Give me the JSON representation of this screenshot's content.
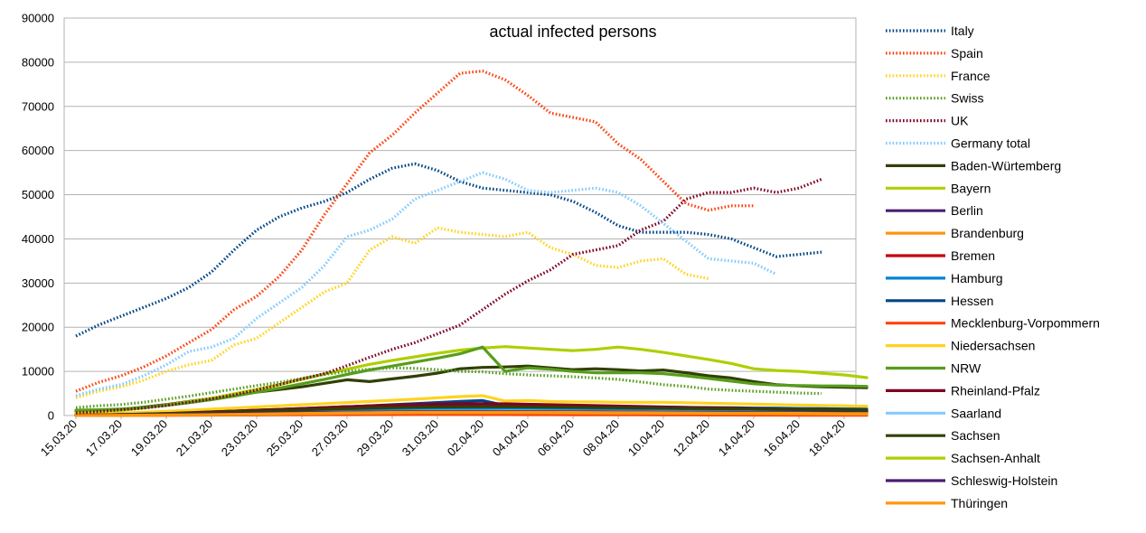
{
  "chart_data": {
    "type": "line",
    "title": "actual infected persons",
    "xlabel": "",
    "ylabel": "",
    "ylim": [
      0,
      90000
    ],
    "y_ticks": [
      "0",
      "10000",
      "20000",
      "30000",
      "40000",
      "50000",
      "60000",
      "70000",
      "80000",
      "90000"
    ],
    "x_tick_labels": [
      "15.03.20",
      "17.03.20",
      "19.03.20",
      "21.03.20",
      "23.03.20",
      "25.03.20",
      "27.03.20",
      "29.03.20",
      "31.03.20",
      "02.04.20",
      "04.04.20",
      "06.04.20",
      "08.04.20",
      "10.04.20",
      "12.04.20",
      "14.04.20",
      "16.04.20",
      "18.04.20"
    ],
    "grid": "horizontal",
    "legend_position": "right",
    "x": [
      "15.03.20",
      "16.03.20",
      "17.03.20",
      "18.03.20",
      "19.03.20",
      "20.03.20",
      "21.03.20",
      "22.03.20",
      "23.03.20",
      "24.03.20",
      "25.03.20",
      "26.03.20",
      "27.03.20",
      "28.03.20",
      "29.03.20",
      "30.03.20",
      "31.03.20",
      "01.04.20",
      "02.04.20",
      "03.04.20",
      "04.04.20",
      "05.04.20",
      "06.04.20",
      "07.04.20",
      "08.04.20",
      "09.04.20",
      "10.04.20",
      "11.04.20",
      "12.04.20",
      "13.04.20",
      "14.04.20",
      "15.04.20",
      "16.04.20",
      "17.04.20",
      "18.04.20",
      "19.04.20"
    ],
    "series": [
      {
        "name": "Italy",
        "color": "#004586",
        "style": "dotted",
        "values": [
          18000,
          20500,
          22500,
          24500,
          26500,
          29000,
          32500,
          37500,
          42000,
          45000,
          47000,
          48500,
          50500,
          53500,
          56000,
          57000,
          55500,
          53000,
          51500,
          51000,
          50500,
          50000,
          48500,
          46000,
          43000,
          41500,
          41500,
          41500,
          41000,
          40000,
          38000,
          36000,
          36500,
          37000,
          null,
          null
        ]
      },
      {
        "name": "Spain",
        "color": "#ff420e",
        "style": "dotted",
        "values": [
          5500,
          7500,
          9000,
          11000,
          13500,
          16500,
          19500,
          24000,
          27000,
          31500,
          37500,
          45500,
          52500,
          59500,
          63500,
          68500,
          73000,
          77500,
          78000,
          76000,
          72500,
          68500,
          67500,
          66500,
          61500,
          58000,
          53000,
          48000,
          46500,
          47500,
          47500,
          null,
          null,
          null,
          null,
          null
        ]
      },
      {
        "name": "France",
        "color": "#ffd320",
        "style": "dotted",
        "values": [
          4000,
          5500,
          6500,
          8000,
          10000,
          11500,
          12500,
          16000,
          17500,
          21000,
          24500,
          28000,
          30000,
          37500,
          40500,
          39000,
          42500,
          41500,
          41000,
          40500,
          41500,
          38000,
          36500,
          34000,
          33500,
          35000,
          35500,
          32000,
          31000,
          null,
          null,
          null,
          null,
          null,
          null,
          null
        ]
      },
      {
        "name": "Swiss",
        "color": "#579d1c",
        "style": "dotted",
        "values": [
          1800,
          2200,
          2500,
          3000,
          3700,
          4400,
          5200,
          6000,
          6800,
          7500,
          8400,
          9300,
          10000,
          10500,
          10800,
          10700,
          10400,
          10000,
          9900,
          9500,
          9200,
          9000,
          8800,
          8500,
          8200,
          7600,
          7000,
          6600,
          6000,
          5700,
          5500,
          5300,
          5100,
          5000,
          null,
          null
        ]
      },
      {
        "name": "UK",
        "color": "#7e0021",
        "style": "dotted",
        "values": [
          600,
          900,
          1300,
          1700,
          2300,
          3000,
          3800,
          4700,
          5800,
          7000,
          8300,
          9500,
          11300,
          13200,
          15000,
          16500,
          18500,
          20500,
          24000,
          27500,
          30500,
          33000,
          36500,
          37500,
          38500,
          42000,
          44000,
          49000,
          50500,
          50500,
          51500,
          50500,
          51500,
          53500,
          null,
          null
        ]
      },
      {
        "name": "Germany total",
        "color": "#83caff",
        "style": "dotted",
        "values": [
          4500,
          6000,
          7000,
          9000,
          11500,
          14500,
          15500,
          17500,
          22000,
          25500,
          29000,
          34000,
          40500,
          42000,
          44500,
          49000,
          51000,
          53000,
          55000,
          53500,
          51000,
          50500,
          51000,
          51500,
          50500,
          47500,
          43500,
          39500,
          35500,
          35000,
          34500,
          32000,
          null,
          null,
          null,
          null
        ]
      },
      {
        "name": "Baden-Würtemberg",
        "color": "#314004",
        "style": "solid",
        "values": [
          900,
          1100,
          1400,
          1900,
          2500,
          3200,
          3900,
          4600,
          5300,
          5900,
          6500,
          7300,
          8100,
          7700,
          8300,
          8900,
          9600,
          10600,
          10900,
          11000,
          11200,
          10800,
          10400,
          10600,
          10400,
          10100,
          10300,
          9700,
          9000,
          8500,
          7700,
          7000,
          6700,
          6500,
          6400,
          6300
        ]
      },
      {
        "name": "Bayern",
        "color": "#aecf00",
        "style": "solid",
        "values": [
          700,
          900,
          1200,
          1700,
          2400,
          3100,
          3900,
          4900,
          5900,
          7000,
          8200,
          9400,
          10500,
          11600,
          12500,
          13300,
          14100,
          14800,
          15300,
          15600,
          15300,
          15000,
          14700,
          15000,
          15500,
          15000,
          14300,
          13500,
          12700,
          11800,
          10600,
          10200,
          10000,
          9600,
          9200,
          8600
        ]
      },
      {
        "name": "Berlin",
        "color": "#4b1f6f",
        "style": "solid",
        "values": [
          150,
          200,
          300,
          400,
          550,
          700,
          850,
          1000,
          1200,
          1400,
          1600,
          1800,
          2000,
          2100,
          2200,
          2300,
          2300,
          2200,
          2100,
          2000,
          1900,
          1800,
          1750,
          1700,
          1650,
          1600,
          1550,
          1500,
          1450,
          1400,
          1350,
          1300,
          1250,
          1200,
          1150,
          1100
        ]
      },
      {
        "name": "Brandenburg",
        "color": "#ff950e",
        "style": "solid",
        "values": [
          50,
          60,
          80,
          100,
          130,
          170,
          220,
          270,
          330,
          400,
          470,
          540,
          600,
          650,
          700,
          730,
          750,
          760,
          770,
          770,
          760,
          750,
          740,
          730,
          720,
          700,
          680,
          660,
          640,
          620,
          600,
          580,
          560,
          540,
          520,
          500
        ]
      },
      {
        "name": "Bremen",
        "color": "#c5000b",
        "style": "solid",
        "values": [
          50,
          60,
          70,
          90,
          110,
          130,
          160,
          190,
          220,
          250,
          280,
          310,
          330,
          350,
          360,
          370,
          370,
          370,
          360,
          350,
          340,
          330,
          320,
          310,
          300,
          290,
          280,
          270,
          260,
          250,
          240,
          230,
          220,
          210,
          200,
          190
        ]
      },
      {
        "name": "Hamburg",
        "color": "#0084d1",
        "style": "solid",
        "values": [
          150,
          200,
          260,
          330,
          420,
          520,
          630,
          750,
          880,
          1000,
          1130,
          1250,
          1350,
          1450,
          1520,
          1580,
          1610,
          1630,
          1630,
          1600,
          1560,
          1520,
          1470,
          1420,
          1370,
          1320,
          1270,
          1220,
          1170,
          1120,
          1070,
          1020,
          980,
          940,
          900,
          860
        ]
      },
      {
        "name": "Hessen",
        "color": "#004586",
        "style": "solid",
        "values": [
          150,
          200,
          270,
          350,
          450,
          580,
          720,
          880,
          1050,
          1250,
          1450,
          1700,
          1950,
          2200,
          2450,
          2700,
          2950,
          3200,
          3400,
          2300,
          2200,
          2150,
          2100,
          2050,
          2000,
          1950,
          1900,
          1850,
          1800,
          1750,
          1700,
          1650,
          1600,
          1550,
          1500,
          1450
        ]
      },
      {
        "name": "Mecklenburg-Vorpommern",
        "color": "#ff420e",
        "style": "solid",
        "values": [
          20,
          30,
          40,
          50,
          60,
          80,
          100,
          120,
          140,
          160,
          180,
          200,
          210,
          220,
          230,
          240,
          240,
          240,
          230,
          220,
          210,
          200,
          190,
          180,
          170,
          160,
          150,
          140,
          130,
          120,
          110,
          100,
          90,
          80,
          70,
          60
        ]
      },
      {
        "name": "Niedersachsen",
        "color": "#ffd320",
        "style": "solid",
        "values": [
          300,
          400,
          550,
          750,
          950,
          1200,
          1450,
          1700,
          1950,
          2200,
          2450,
          2700,
          2950,
          3200,
          3450,
          3700,
          4000,
          4300,
          4500,
          3300,
          3400,
          3200,
          3100,
          3100,
          3000,
          3000,
          3000,
          2900,
          2800,
          2700,
          2600,
          2500,
          2400,
          2300,
          2200,
          2100
        ]
      },
      {
        "name": "NRW",
        "color": "#579d1c",
        "style": "solid",
        "values": [
          1200,
          1300,
          1500,
          1800,
          2300,
          2900,
          3600,
          4400,
          5300,
          6200,
          7200,
          8200,
          9300,
          10300,
          11200,
          12100,
          13000,
          14000,
          15500,
          10000,
          10800,
          10500,
          10000,
          9700,
          9700,
          9700,
          9500,
          9000,
          8400,
          7800,
          7200,
          6900,
          6800,
          6700,
          6700,
          6600
        ]
      },
      {
        "name": "Rheinland-Pfalz",
        "color": "#7e0021",
        "style": "solid",
        "values": [
          100,
          150,
          250,
          350,
          480,
          640,
          820,
          1000,
          1200,
          1400,
          1600,
          1800,
          2000,
          2200,
          2350,
          2500,
          2600,
          2700,
          2700,
          2650,
          2550,
          2450,
          2350,
          2250,
          2150,
          2050,
          1950,
          1850,
          1750,
          1650,
          1550,
          1450,
          1350,
          1250,
          1150,
          1050
        ]
      },
      {
        "name": "Saarland",
        "color": "#83caff",
        "style": "solid",
        "values": [
          50,
          70,
          100,
          140,
          190,
          250,
          320,
          400,
          480,
          560,
          640,
          720,
          790,
          860,
          920,
          970,
          1000,
          1020,
          1030,
          1020,
          1000,
          980,
          950,
          920,
          890,
          860,
          830,
          800,
          770,
          740,
          710,
          680,
          650,
          620,
          590,
          560
        ]
      },
      {
        "name": "Sachsen",
        "color": "#314004",
        "style": "solid",
        "values": [
          100,
          150,
          220,
          310,
          420,
          550,
          700,
          850,
          1000,
          1150,
          1300,
          1450,
          1580,
          1700,
          1800,
          1880,
          1940,
          1980,
          2000,
          1990,
          1960,
          1920,
          1870,
          1820,
          1770,
          1720,
          1670,
          1620,
          1570,
          1520,
          1470,
          1420,
          1370,
          1320,
          1270,
          1220
        ]
      },
      {
        "name": "Sachsen-Anhalt",
        "color": "#aecf00",
        "style": "solid",
        "values": [
          30,
          45,
          65,
          90,
          120,
          160,
          210,
          260,
          320,
          380,
          440,
          500,
          550,
          600,
          640,
          670,
          690,
          700,
          700,
          690,
          670,
          650,
          630,
          610,
          590,
          570,
          550,
          530,
          510,
          490,
          470,
          450,
          430,
          410,
          390,
          370
        ]
      },
      {
        "name": "Schleswig-Holstein",
        "color": "#4b1f6f",
        "style": "solid",
        "values": [
          60,
          80,
          110,
          150,
          200,
          260,
          330,
          400,
          480,
          560,
          640,
          710,
          770,
          820,
          860,
          890,
          910,
          920,
          920,
          910,
          890,
          870,
          850,
          830,
          810,
          790,
          770,
          750,
          730,
          710,
          690,
          670,
          650,
          630,
          610,
          590
        ]
      },
      {
        "name": "Thüringen",
        "color": "#ff950e",
        "style": "solid",
        "values": [
          30,
          45,
          65,
          90,
          120,
          160,
          210,
          270,
          340,
          410,
          480,
          550,
          610,
          660,
          700,
          730,
          750,
          760,
          760,
          750,
          730,
          710,
          690,
          670,
          650,
          630,
          610,
          590,
          570,
          550,
          530,
          510,
          490,
          470,
          450,
          430
        ]
      }
    ]
  }
}
